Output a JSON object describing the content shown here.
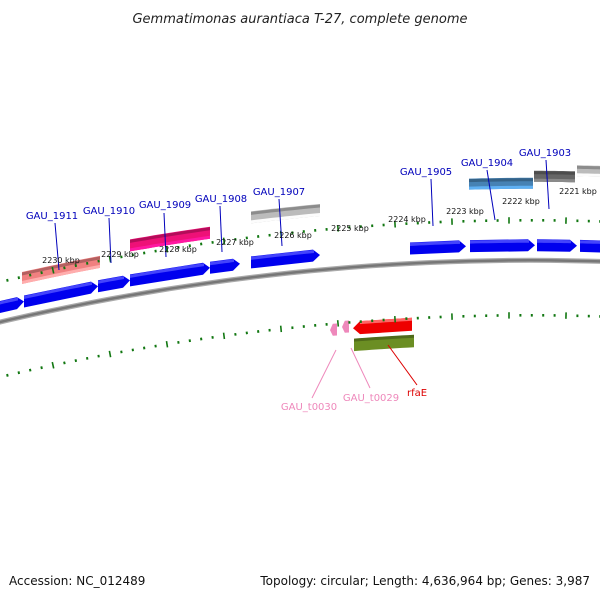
{
  "title": "Gemmatimonas aurantiaca T-27, complete genome",
  "accession": "Accession: NC_012489",
  "summary": "Topology: circular; Length: 4,636,964 bp; Genes: 3,987",
  "tick_labels": [
    "2230 kbp",
    "2229 kbp",
    "2228 kbp",
    "2227 kbp",
    "2226 kbp",
    "2225 kbp",
    "2224 kbp",
    "2223 kbp",
    "2222 kbp",
    "2221 kbp"
  ],
  "upper_labels": [
    "GAU_1911",
    "GAU_1910",
    "GAU_1909",
    "GAU_1908",
    "GAU_1907",
    "GAU_1905",
    "GAU_1904",
    "GAU_1903"
  ],
  "lower_labels": [
    "GAU_t0030",
    "GAU_t0029",
    "rfaE"
  ],
  "colors": {
    "cds": "#0000ee",
    "tick": "#117711",
    "backbone": "#777777",
    "upper_label": "#0000bb",
    "trna_label": "#ee88bb",
    "rfae_label": "#dd0000",
    "salmon": "#f08080",
    "magenta": "#ee1177",
    "light_gray": "#bbbbbb",
    "steel_blue": "#4682b4",
    "dark_gray": "#666666",
    "red": "#ee0000",
    "olive": "#6b8e23",
    "pink": "#ee88bb"
  }
}
